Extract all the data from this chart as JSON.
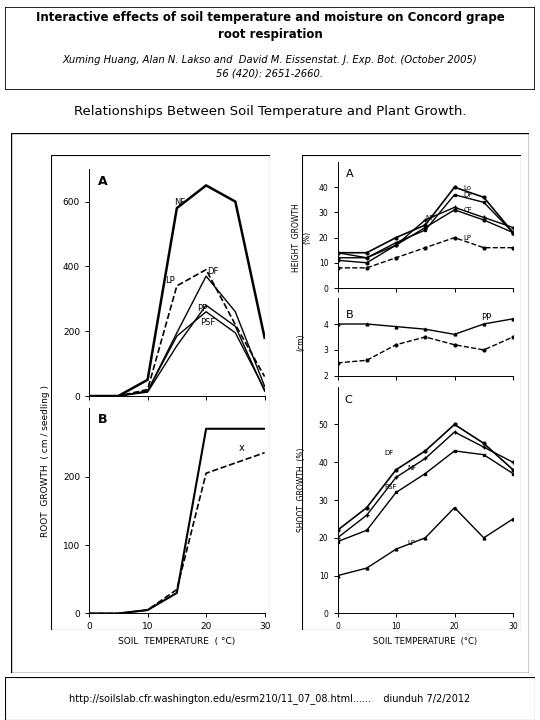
{
  "title_bold": "Interactive effects of soil temperature and moisture on Concord grape\nroot respiration",
  "title_authors": "Xuming Huang, Alan N. Lakso and  David M. Eissenstat. J. Exp. Bot. (October 2005)\n56 (420): 2651-2660.",
  "subtitle": "Relationships Between Soil Temperature and Plant Growth.",
  "footer": "http://soilslab.cfr.washington.edu/esrm210/11_07_08.html......    diunduh 7/2/2012",
  "temps": [
    0,
    5,
    10,
    15,
    20,
    25,
    30
  ],
  "left_A_NF": [
    0,
    0,
    50,
    580,
    650,
    600,
    180
  ],
  "left_A_LP": [
    0,
    0,
    20,
    340,
    390,
    220,
    60
  ],
  "left_A_DF": [
    0,
    0,
    15,
    195,
    370,
    260,
    30
  ],
  "left_A_PP": [
    0,
    0,
    15,
    185,
    260,
    195,
    20
  ],
  "left_A_PSF": [
    0,
    0,
    12,
    155,
    280,
    215,
    15
  ],
  "left_B_solid": [
    0,
    0,
    5,
    30,
    270,
    270,
    270
  ],
  "left_B_dashed": [
    0,
    0,
    5,
    35,
    205,
    220,
    235
  ],
  "right_A_Lo": [
    14,
    14,
    20,
    25,
    40,
    36,
    22
  ],
  "right_A_DF": [
    14,
    12,
    18,
    23,
    37,
    34,
    22
  ],
  "right_A_NF": [
    12,
    12,
    17,
    27,
    32,
    28,
    24
  ],
  "right_A_CF": [
    11,
    10,
    17,
    24,
    31,
    27,
    22
  ],
  "right_A_LP": [
    8,
    8,
    12,
    16,
    20,
    16,
    16
  ],
  "right_B_solid": [
    4.0,
    4.0,
    3.9,
    3.8,
    3.6,
    4.0,
    4.2
  ],
  "right_B_dashed": [
    2.5,
    2.6,
    3.2,
    3.5,
    3.2,
    3.0,
    3.5
  ],
  "right_C_DF": [
    22,
    28,
    38,
    43,
    50,
    45,
    38
  ],
  "right_C_NF": [
    20,
    26,
    36,
    41,
    48,
    44,
    40
  ],
  "right_C_PSF": [
    19,
    22,
    32,
    37,
    43,
    42,
    37
  ],
  "right_C_LP": [
    10,
    12,
    17,
    20,
    28,
    20,
    25
  ]
}
